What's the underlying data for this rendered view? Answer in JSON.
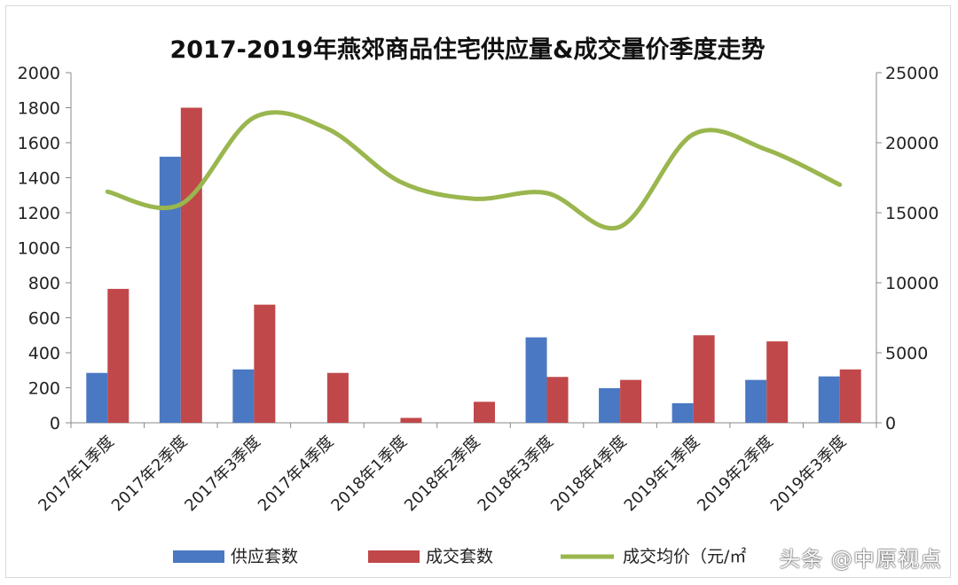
{
  "chart_data": {
    "type": "bar",
    "title": "2017-2019年燕郊商品住宅供应量&成交量价季度走势",
    "categories": [
      "2017年1季度",
      "2017年2季度",
      "2017年3季度",
      "2017年4季度",
      "2018年1季度",
      "2018年2季度",
      "2018年3季度",
      "2018年4季度",
      "2019年1季度",
      "2019年2季度",
      "2019年3季度"
    ],
    "series": [
      {
        "name": "供应套数",
        "type": "bar",
        "axis": "left",
        "color": "#4a78c2",
        "values": [
          285,
          1520,
          305,
          0,
          0,
          0,
          488,
          198,
          112,
          245,
          265
        ]
      },
      {
        "name": "成交套数",
        "type": "bar",
        "axis": "left",
        "color": "#c0484a",
        "values": [
          765,
          1800,
          675,
          285,
          28,
          120,
          262,
          245,
          500,
          465,
          305
        ]
      },
      {
        "name": "成交均价（元/㎡）",
        "type": "line",
        "axis": "right",
        "color": "#9ab64e",
        "values": [
          16500,
          15600,
          21800,
          21000,
          17200,
          16000,
          16400,
          14000,
          20600,
          19500,
          17000
        ]
      }
    ],
    "ylim_left": [
      0,
      2000
    ],
    "yticks_left": [
      "0",
      "200",
      "400",
      "600",
      "800",
      "1000",
      "1200",
      "1400",
      "1600",
      "1800",
      "2000"
    ],
    "ylim_right": [
      0,
      25000
    ],
    "yticks_right": [
      "0",
      "5000",
      "10000",
      "15000",
      "20000",
      "25000"
    ],
    "legend_position": "bottom",
    "grid": false
  },
  "legend": {
    "supply": "供应套数",
    "deals": "成交套数",
    "price": "成交均价（元/㎡"
  },
  "watermark": "头条 @中原视点"
}
